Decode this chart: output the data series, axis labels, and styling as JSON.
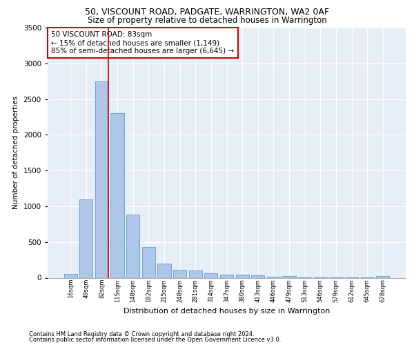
{
  "title1": "50, VISCOUNT ROAD, PADGATE, WARRINGTON, WA2 0AF",
  "title2": "Size of property relative to detached houses in Warrington",
  "xlabel": "Distribution of detached houses by size in Warrington",
  "ylabel": "Number of detached properties",
  "categories": [
    "16sqm",
    "49sqm",
    "82sqm",
    "115sqm",
    "148sqm",
    "182sqm",
    "215sqm",
    "248sqm",
    "281sqm",
    "314sqm",
    "347sqm",
    "380sqm",
    "413sqm",
    "446sqm",
    "479sqm",
    "513sqm",
    "546sqm",
    "579sqm",
    "612sqm",
    "645sqm",
    "678sqm"
  ],
  "values": [
    50,
    1100,
    2750,
    2300,
    880,
    430,
    200,
    110,
    105,
    65,
    40,
    40,
    30,
    15,
    20,
    5,
    5,
    5,
    5,
    5,
    20
  ],
  "bar_color": "#aec6e8",
  "bar_edgecolor": "#5a9fd4",
  "vline_x_index": 2,
  "vline_color": "#cc0000",
  "annotation_text": "50 VISCOUNT ROAD: 83sqm\n← 15% of detached houses are smaller (1,149)\n85% of semi-detached houses are larger (6,645) →",
  "annotation_box_color": "#ffffff",
  "annotation_box_edgecolor": "#cc0000",
  "plot_bg_color": "#e8eef7",
  "footer1": "Contains HM Land Registry data © Crown copyright and database right 2024.",
  "footer2": "Contains public sector information licensed under the Open Government Licence v3.0.",
  "ylim": [
    0,
    3500
  ],
  "yticks": [
    0,
    500,
    1000,
    1500,
    2000,
    2500,
    3000,
    3500
  ]
}
